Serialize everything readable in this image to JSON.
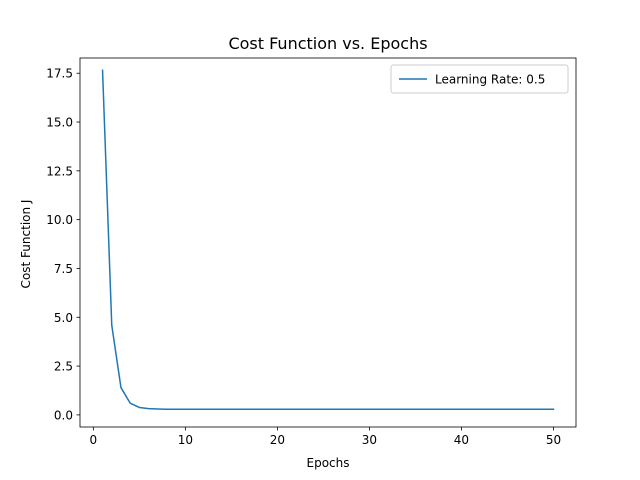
{
  "chart_data": {
    "type": "line",
    "title": "Cost Function vs. Epochs",
    "xlabel": "Epochs",
    "ylabel": "Cost Function J",
    "xlim": [
      -1.45,
      52.45
    ],
    "ylim": [
      -0.62,
      18.28
    ],
    "x_ticks": [
      0,
      10,
      20,
      30,
      40,
      50
    ],
    "y_ticks": [
      0.0,
      2.5,
      5.0,
      7.5,
      10.0,
      12.5,
      15.0,
      17.5
    ],
    "x_tick_labels": [
      "0",
      "10",
      "20",
      "30",
      "40",
      "50"
    ],
    "y_tick_labels": [
      "0.0",
      "2.5",
      "5.0",
      "7.5",
      "10.0",
      "12.5",
      "15.0",
      "17.5"
    ],
    "grid": false,
    "legend_position": "upper right",
    "series": [
      {
        "name": "Learning Rate: 0.5",
        "color": "#1f77b4",
        "x": [
          1,
          2,
          3,
          4,
          5,
          6,
          7,
          8,
          9,
          10,
          11,
          12,
          13,
          14,
          15,
          16,
          17,
          18,
          19,
          20,
          21,
          22,
          23,
          24,
          25,
          26,
          27,
          28,
          29,
          30,
          31,
          32,
          33,
          34,
          35,
          36,
          37,
          38,
          39,
          40,
          41,
          42,
          43,
          44,
          45,
          46,
          47,
          48,
          49,
          50
        ],
        "y": [
          17.65,
          4.6,
          1.4,
          0.6,
          0.38,
          0.32,
          0.3,
          0.29,
          0.29,
          0.29,
          0.29,
          0.29,
          0.29,
          0.29,
          0.29,
          0.29,
          0.29,
          0.29,
          0.29,
          0.29,
          0.29,
          0.29,
          0.29,
          0.29,
          0.29,
          0.29,
          0.29,
          0.29,
          0.29,
          0.29,
          0.29,
          0.29,
          0.29,
          0.29,
          0.29,
          0.29,
          0.29,
          0.29,
          0.29,
          0.29,
          0.29,
          0.29,
          0.29,
          0.29,
          0.29,
          0.29,
          0.29,
          0.29,
          0.29,
          0.29
        ]
      }
    ]
  }
}
